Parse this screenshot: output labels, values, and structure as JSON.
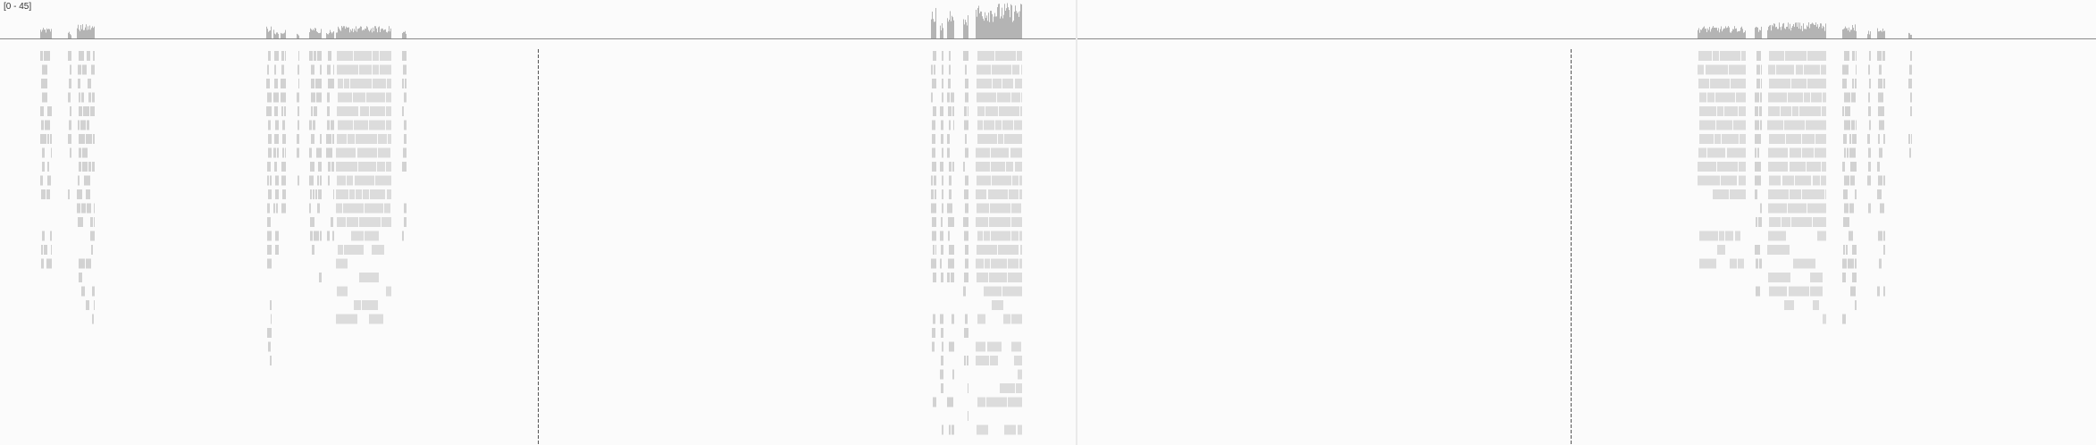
{
  "track": {
    "data_range": "[0 - 45]"
  },
  "colors": {
    "coverage": "#b4b4b4",
    "read": "#d2d2d2",
    "read_dense": "#dcdcdc",
    "center_line": "#555555",
    "background": "#fbfbfb"
  }
}
